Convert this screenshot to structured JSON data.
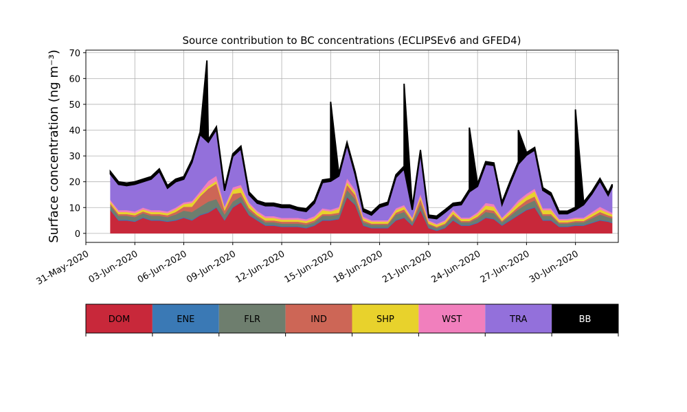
{
  "chart_data": {
    "type": "area",
    "stacked": true,
    "title": "Source contribution to BC concentrations (ECLIPSEv6 and GFED4)",
    "ylabel": "Surface concentration (ng m⁻³)",
    "xlabel": "",
    "ylim": [
      -3.5,
      71
    ],
    "yticks": [
      0,
      10,
      20,
      30,
      40,
      50,
      60,
      70
    ],
    "xlim": [
      "2020-05-31",
      "2020-07-02T15:00"
    ],
    "xticks": [
      "31-May-2020",
      "03-Jun-2020",
      "06-Jun-2020",
      "09-Jun-2020",
      "12-Jun-2020",
      "15-Jun-2020",
      "18-Jun-2020",
      "21-Jun-2020",
      "24-Jun-2020",
      "27-Jun-2020",
      "30-Jun-2020"
    ],
    "grid": true,
    "legend_position": "bottom",
    "x": [
      "2020-06-01T12:00",
      "2020-06-02T00:00",
      "2020-06-02T12:00",
      "2020-06-03T00:00",
      "2020-06-03T12:00",
      "2020-06-04T00:00",
      "2020-06-04T12:00",
      "2020-06-05T00:00",
      "2020-06-05T12:00",
      "2020-06-06T00:00",
      "2020-06-06T12:00",
      "2020-06-07T00:00",
      "2020-06-07T12:00",
      "2020-06-08T00:00",
      "2020-06-08T12:00",
      "2020-06-09T00:00",
      "2020-06-09T12:00",
      "2020-06-10T00:00",
      "2020-06-10T12:00",
      "2020-06-11T00:00",
      "2020-06-11T12:00",
      "2020-06-12T00:00",
      "2020-06-12T12:00",
      "2020-06-13T00:00",
      "2020-06-13T12:00",
      "2020-06-14T00:00",
      "2020-06-14T12:00",
      "2020-06-15T00:00",
      "2020-06-15T12:00",
      "2020-06-16T00:00",
      "2020-06-16T12:00",
      "2020-06-17T00:00",
      "2020-06-17T12:00",
      "2020-06-18T00:00",
      "2020-06-18T12:00",
      "2020-06-19T00:00",
      "2020-06-19T12:00",
      "2020-06-20T00:00",
      "2020-06-20T12:00",
      "2020-06-21T00:00",
      "2020-06-21T12:00",
      "2020-06-22T00:00",
      "2020-06-22T12:00",
      "2020-06-23T00:00",
      "2020-06-23T12:00",
      "2020-06-24T00:00",
      "2020-06-24T12:00",
      "2020-06-25T00:00",
      "2020-06-25T12:00",
      "2020-06-26T00:00",
      "2020-06-26T12:00",
      "2020-06-27T00:00",
      "2020-06-27T12:00",
      "2020-06-28T00:00",
      "2020-06-28T12:00",
      "2020-06-29T00:00",
      "2020-06-29T12:00",
      "2020-06-30T00:00",
      "2020-06-30T12:00",
      "2020-07-01T00:00",
      "2020-07-01T12:00",
      "2020-07-02T00:00",
      "2020-07-02T06:00"
    ],
    "series": [
      {
        "name": "DOM",
        "color": "#c8283a",
        "values": [
          9,
          5,
          5,
          4.5,
          6,
          5,
          5,
          4.5,
          5,
          6,
          5,
          7,
          8,
          10,
          5,
          10,
          12,
          7,
          5,
          3,
          3,
          2.5,
          2.5,
          2.5,
          2,
          3,
          5,
          5,
          5.5,
          14,
          11,
          3,
          2,
          2,
          2,
          5,
          6,
          3,
          9,
          2,
          1,
          2,
          5,
          3,
          3,
          4,
          6,
          5.5,
          3,
          5,
          7,
          9,
          10,
          5,
          5,
          2.5,
          2.5,
          3,
          3,
          4,
          5,
          4.5,
          4
        ]
      },
      {
        "name": "ENE",
        "color": "#3a79b5",
        "values": [
          0.3,
          0.3,
          0.3,
          0.3,
          0.3,
          0.3,
          0.3,
          0.3,
          0.3,
          0.3,
          0.3,
          0.3,
          0.3,
          0.3,
          0.3,
          0.3,
          0.3,
          0.3,
          0.3,
          0.3,
          0.3,
          0.3,
          0.3,
          0.3,
          0.3,
          0.3,
          0.3,
          0.3,
          0.3,
          0.3,
          0.3,
          0.3,
          0.3,
          0.3,
          0.3,
          0.3,
          0.3,
          0.3,
          0.3,
          0.3,
          0.3,
          0.3,
          0.3,
          0.3,
          0.3,
          0.3,
          0.3,
          0.3,
          0.3,
          0.3,
          0.3,
          0.3,
          0.3,
          0.3,
          0.3,
          0.3,
          0.3,
          0.3,
          0.3,
          0.3,
          0.3,
          0.3,
          0.3
        ]
      },
      {
        "name": "FLR",
        "color": "#6e7e6e",
        "values": [
          1.5,
          1.5,
          1.5,
          1.5,
          1.5,
          1.5,
          1.5,
          1.5,
          2,
          2.5,
          3,
          3,
          4,
          3,
          2,
          2,
          2,
          1.5,
          1,
          1,
          1,
          1,
          1,
          1,
          1,
          1,
          1.5,
          1.5,
          1.5,
          2.5,
          2,
          1,
          1,
          1,
          1,
          2,
          2,
          1,
          2,
          1,
          0.8,
          1,
          1.5,
          1,
          1,
          1.5,
          2,
          2,
          1,
          1.5,
          2,
          2,
          2.5,
          1.5,
          1.5,
          1,
          1,
          1,
          1,
          1.5,
          2,
          1.5,
          1.5
        ]
      },
      {
        "name": "IND",
        "color": "#cd6656",
        "values": [
          0.7,
          0.7,
          0.7,
          0.7,
          0.7,
          0.7,
          0.7,
          0.7,
          1,
          1.5,
          2,
          4,
          5,
          6,
          1.5,
          3,
          1.5,
          1,
          0.7,
          0.7,
          0.7,
          0.7,
          0.7,
          0.7,
          0.7,
          0.7,
          0.7,
          0.7,
          0.7,
          2,
          1.5,
          0.7,
          0.5,
          0.5,
          0.5,
          0.7,
          1,
          0.5,
          2,
          0.5,
          0.4,
          0.5,
          0.7,
          0.5,
          0.5,
          0.7,
          1,
          1,
          0.5,
          0.7,
          1,
          1.5,
          1.5,
          0.7,
          0.7,
          0.5,
          0.5,
          0.5,
          0.5,
          0.7,
          1,
          0.7,
          0.7
        ]
      },
      {
        "name": "SHP",
        "color": "#e8d22c",
        "values": [
          0.8,
          0.8,
          0.8,
          0.8,
          0.8,
          0.8,
          0.8,
          0.8,
          1,
          1,
          1.5,
          1,
          1,
          1,
          1,
          1.5,
          2,
          1.5,
          1,
          1,
          1,
          0.8,
          0.8,
          0.8,
          0.8,
          1,
          1.5,
          1,
          1.5,
          1,
          1,
          0.8,
          0.8,
          0.8,
          0.8,
          1,
          1,
          0.8,
          1,
          0.8,
          0.8,
          0.8,
          1,
          0.8,
          0.8,
          1,
          1.5,
          1.5,
          0.8,
          1,
          1.5,
          1.5,
          2,
          1.5,
          1.5,
          0.8,
          0.8,
          0.8,
          0.8,
          1,
          1,
          1,
          0.8
        ]
      },
      {
        "name": "WST",
        "color": "#f17fbd",
        "values": [
          0.7,
          0.7,
          0.7,
          0.7,
          0.7,
          0.7,
          0.7,
          0.7,
          0.7,
          0.7,
          0.7,
          1,
          2,
          2,
          0.7,
          1,
          1,
          0.7,
          0.7,
          0.7,
          0.7,
          0.7,
          0.7,
          0.7,
          0.7,
          0.7,
          0.7,
          0.7,
          0.7,
          1.5,
          1,
          0.7,
          0.5,
          0.5,
          0.5,
          0.7,
          0.7,
          0.5,
          1,
          0.5,
          0.4,
          0.5,
          0.7,
          0.5,
          0.5,
          0.7,
          1,
          1,
          0.5,
          0.7,
          1,
          1,
          1,
          0.7,
          0.7,
          0.5,
          0.5,
          0.5,
          0.5,
          0.7,
          1,
          0.7,
          0.7
        ]
      },
      {
        "name": "TRA",
        "color": "#9370db",
        "values": [
          10,
          10,
          9.5,
          10.5,
          10,
          12,
          15,
          9,
          10,
          9,
          15,
          22,
          15,
          18,
          6,
          12,
          14,
          3,
          3,
          4,
          4,
          4,
          4,
          3,
          3,
          5,
          10,
          11,
          12,
          13,
          6,
          2,
          2,
          5,
          6,
          12,
          14,
          3,
          16,
          1,
          2,
          3,
          1.5,
          5,
          10,
          10,
          15,
          15,
          5,
          10,
          14,
          15,
          15,
          7,
          5,
          2,
          2,
          3,
          5,
          7,
          10,
          6,
          10
        ]
      },
      {
        "name": "BB",
        "color": "#000000",
        "values": [
          1,
          1,
          1,
          1,
          1,
          1,
          1,
          1,
          1,
          1,
          1,
          1,
          1,
          1,
          1,
          1,
          1,
          1,
          1,
          1,
          1,
          1,
          1,
          1,
          1,
          1,
          1,
          1,
          1,
          1,
          1,
          1,
          1,
          1,
          1,
          1,
          1,
          1,
          1,
          1,
          1,
          1,
          1,
          1,
          1,
          1,
          1,
          1,
          1,
          1,
          1,
          1,
          1,
          1,
          1,
          1,
          1,
          1,
          1,
          1,
          1,
          1,
          1
        ]
      }
    ],
    "bb_total_peaks": [
      {
        "x": "2020-06-07T10:00",
        "total": 67
      },
      {
        "x": "2020-06-15T00:00",
        "total": 51
      },
      {
        "x": "2020-06-19T12:00",
        "total": 58
      },
      {
        "x": "2020-06-23T12:00",
        "total": 41
      },
      {
        "x": "2020-06-26T12:00",
        "total": 40
      },
      {
        "x": "2020-06-30T00:00",
        "total": 48
      }
    ]
  }
}
